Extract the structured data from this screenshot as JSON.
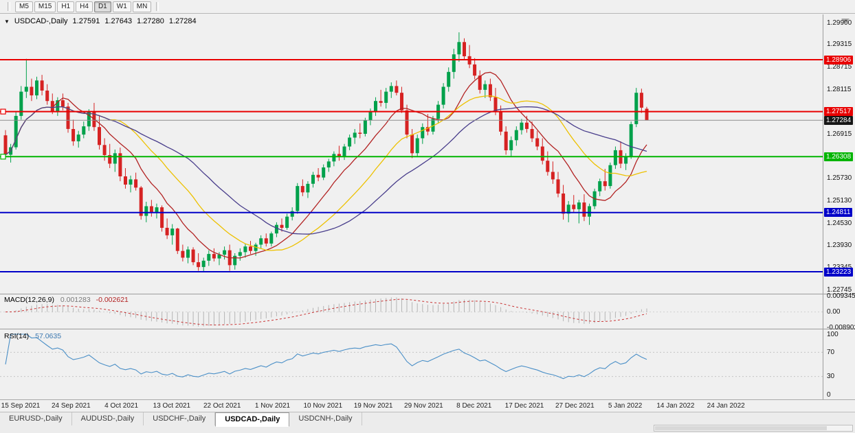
{
  "toolbar": {
    "timeframes": [
      "M5",
      "M15",
      "H1",
      "H4",
      "D1",
      "W1",
      "MN"
    ],
    "active_timeframe": "D1"
  },
  "chart_header": {
    "symbol": "USDCAD-,Daily",
    "open": "1.27591",
    "high": "1.27643",
    "low": "1.27280",
    "close": "1.27284"
  },
  "indicators": {
    "macd": {
      "name": "MACD(12,26,9)",
      "value_main": "0.001283",
      "value_signal": "-0.002621",
      "scale": [
        "0.009345",
        "0.00",
        "-0.008902"
      ],
      "colors": {
        "histogram": "#b4b4b4",
        "signal": "#c83232"
      }
    },
    "rsi": {
      "name": "RSI(14)",
      "value": "57.0635",
      "scale": [
        "100",
        "70",
        "30",
        "0"
      ],
      "levels": [
        70,
        30
      ],
      "color": "#4a8fc7"
    }
  },
  "tabs": {
    "items": [
      "EURUSD-,Daily",
      "AUDUSD-,Daily",
      "USDCHF-,Daily",
      "USDCAD-,Daily",
      "USDCNH-,Daily"
    ],
    "active": "USDCAD-,Daily"
  },
  "chart_data": {
    "type": "candlestick",
    "symbol": "USDCAD",
    "timeframe": "Daily",
    "y_axis": {
      "range": [
        1.2263,
        1.3012
      ],
      "ticks": [
        "1.29900",
        "1.29315",
        "1.28715",
        "1.28115",
        "1.26915",
        "1.25730",
        "1.25130",
        "1.24530",
        "1.23930",
        "1.23345",
        "1.22745"
      ]
    },
    "x_axis": {
      "labels": [
        "15 Sep 2021",
        "24 Sep 2021",
        "4 Oct 2021",
        "13 Oct 2021",
        "22 Oct 2021",
        "1 Nov 2021",
        "10 Nov 2021",
        "19 Nov 2021",
        "29 Nov 2021",
        "8 Dec 2021",
        "17 Dec 2021",
        "27 Dec 2021",
        "5 Jan 2022",
        "14 Jan 2022",
        "24 Jan 2022"
      ]
    },
    "horizontal_lines": [
      {
        "label": "1.28906",
        "value": 1.28906,
        "color": "#e80000",
        "anchor": false
      },
      {
        "label": "1.27517",
        "value": 1.27517,
        "color": "#e80000",
        "anchor": true
      },
      {
        "label": "1.26308",
        "value": 1.26308,
        "color": "#00b400",
        "anchor": true
      },
      {
        "label": "1.24811",
        "value": 1.24811,
        "color": "#0000c8",
        "anchor": false
      },
      {
        "label": "1.23223",
        "value": 1.23223,
        "color": "#0000c8",
        "anchor": false
      }
    ],
    "current_price": {
      "label": "1.27284",
      "value": 1.27284,
      "color": "#161616",
      "line_color": "#8c8c8c"
    },
    "candle_colors": {
      "up": "#00a14b",
      "down": "#d62222"
    },
    "moving_averages": [
      {
        "period": 10,
        "color": "#b22222"
      },
      {
        "period": 21,
        "color": "#edc100"
      },
      {
        "period": 34,
        "color": "#483d8b"
      }
    ],
    "macd_params": [
      12,
      26,
      9
    ],
    "rsi_period": 14,
    "candles": [
      [
        1.2688,
        1.2702,
        1.2628,
        1.2636
      ],
      [
        1.2636,
        1.2665,
        1.2615,
        1.2656
      ],
      [
        1.2656,
        1.275,
        1.265,
        1.274
      ],
      [
        1.274,
        1.282,
        1.273,
        1.2805
      ],
      [
        1.2805,
        1.2893,
        1.2788,
        1.2818
      ],
      [
        1.2818,
        1.284,
        1.278,
        1.2795
      ],
      [
        1.2795,
        1.2845,
        1.2785,
        1.2835
      ],
      [
        1.2835,
        1.285,
        1.2795,
        1.2808
      ],
      [
        1.2808,
        1.2825,
        1.277,
        1.278
      ],
      [
        1.278,
        1.28,
        1.2745,
        1.2752
      ],
      [
        1.2752,
        1.279,
        1.274,
        1.2782
      ],
      [
        1.2782,
        1.28,
        1.2755,
        1.2765
      ],
      [
        1.2765,
        1.2775,
        1.2695,
        1.2705
      ],
      [
        1.2705,
        1.273,
        1.266,
        1.2672
      ],
      [
        1.2672,
        1.27,
        1.2655,
        1.269
      ],
      [
        1.269,
        1.2725,
        1.268,
        1.2712
      ],
      [
        1.2712,
        1.2758,
        1.27,
        1.275
      ],
      [
        1.275,
        1.2775,
        1.27,
        1.271
      ],
      [
        1.271,
        1.2742,
        1.265,
        1.2662
      ],
      [
        1.2662,
        1.268,
        1.262,
        1.2635
      ],
      [
        1.2635,
        1.2665,
        1.26,
        1.2612
      ],
      [
        1.2612,
        1.265,
        1.259,
        1.264
      ],
      [
        1.264,
        1.2655,
        1.2565,
        1.2578
      ],
      [
        1.2578,
        1.26,
        1.2545,
        1.2556
      ],
      [
        1.2556,
        1.258,
        1.2535,
        1.257
      ],
      [
        1.257,
        1.2588,
        1.254,
        1.2548
      ],
      [
        1.2548,
        1.2552,
        1.2462,
        1.2472
      ],
      [
        1.2472,
        1.251,
        1.2455,
        1.2498
      ],
      [
        1.2498,
        1.2515,
        1.247,
        1.248
      ],
      [
        1.248,
        1.2505,
        1.2465,
        1.2495
      ],
      [
        1.2495,
        1.25,
        1.243,
        1.244
      ],
      [
        1.244,
        1.2465,
        1.241,
        1.242
      ],
      [
        1.242,
        1.245,
        1.2395,
        1.2438
      ],
      [
        1.2438,
        1.244,
        1.237,
        1.2378
      ],
      [
        1.2378,
        1.2395,
        1.235,
        1.236
      ],
      [
        1.236,
        1.239,
        1.2345,
        1.2382
      ],
      [
        1.2382,
        1.2388,
        1.234,
        1.2348
      ],
      [
        1.2348,
        1.2372,
        1.2325,
        1.2335
      ],
      [
        1.2335,
        1.236,
        1.2323,
        1.2352
      ],
      [
        1.2352,
        1.238,
        1.2338,
        1.237
      ],
      [
        1.237,
        1.2385,
        1.235,
        1.2358
      ],
      [
        1.2358,
        1.2375,
        1.234,
        1.2368
      ],
      [
        1.2368,
        1.239,
        1.2355,
        1.238
      ],
      [
        1.238,
        1.2395,
        1.2325,
        1.234
      ],
      [
        1.234,
        1.2372,
        1.2328,
        1.2365
      ],
      [
        1.2365,
        1.2385,
        1.2352,
        1.2375
      ],
      [
        1.2375,
        1.2398,
        1.236,
        1.239
      ],
      [
        1.239,
        1.2405,
        1.237,
        1.2378
      ],
      [
        1.2378,
        1.24,
        1.2365,
        1.2395
      ],
      [
        1.2395,
        1.242,
        1.2385,
        1.2412
      ],
      [
        1.2412,
        1.2425,
        1.239,
        1.2398
      ],
      [
        1.2398,
        1.243,
        1.239,
        1.2425
      ],
      [
        1.2425,
        1.2455,
        1.2415,
        1.2448
      ],
      [
        1.2448,
        1.2465,
        1.243,
        1.244
      ],
      [
        1.244,
        1.2478,
        1.2435,
        1.247
      ],
      [
        1.247,
        1.2495,
        1.246,
        1.2485
      ],
      [
        1.2485,
        1.256,
        1.2478,
        1.2552
      ],
      [
        1.2552,
        1.257,
        1.2525,
        1.2535
      ],
      [
        1.2535,
        1.2565,
        1.252,
        1.2558
      ],
      [
        1.2558,
        1.259,
        1.2548,
        1.2582
      ],
      [
        1.2582,
        1.26,
        1.2565,
        1.2575
      ],
      [
        1.2575,
        1.261,
        1.2568,
        1.2602
      ],
      [
        1.2602,
        1.2625,
        1.259,
        1.2618
      ],
      [
        1.2618,
        1.2645,
        1.2605,
        1.2638
      ],
      [
        1.2638,
        1.266,
        1.262,
        1.263
      ],
      [
        1.263,
        1.2665,
        1.2622,
        1.2658
      ],
      [
        1.2658,
        1.269,
        1.2648,
        1.2682
      ],
      [
        1.2682,
        1.2705,
        1.2665,
        1.2695
      ],
      [
        1.2695,
        1.272,
        1.268,
        1.2692
      ],
      [
        1.2692,
        1.2735,
        1.2685,
        1.2728
      ],
      [
        1.2728,
        1.276,
        1.2715,
        1.2752
      ],
      [
        1.2752,
        1.279,
        1.274,
        1.278
      ],
      [
        1.278,
        1.281,
        1.2765,
        1.2775
      ],
      [
        1.2775,
        1.2815,
        1.276,
        1.2805
      ],
      [
        1.2805,
        1.283,
        1.2788,
        1.282
      ],
      [
        1.282,
        1.2835,
        1.2795,
        1.2802
      ],
      [
        1.2802,
        1.2818,
        1.2748,
        1.2755
      ],
      [
        1.2755,
        1.277,
        1.268,
        1.269
      ],
      [
        1.269,
        1.2705,
        1.2627,
        1.264
      ],
      [
        1.264,
        1.269,
        1.263,
        1.268
      ],
      [
        1.268,
        1.272,
        1.2665,
        1.271
      ],
      [
        1.271,
        1.2745,
        1.2688,
        1.2698
      ],
      [
        1.2698,
        1.274,
        1.269,
        1.2732
      ],
      [
        1.2732,
        1.278,
        1.2722,
        1.277
      ],
      [
        1.277,
        1.2828,
        1.276,
        1.2818
      ],
      [
        1.2818,
        1.287,
        1.2805,
        1.2858
      ],
      [
        1.2858,
        1.292,
        1.284,
        1.2905
      ],
      [
        1.2905,
        1.2964,
        1.2885,
        1.2938
      ],
      [
        1.2938,
        1.2948,
        1.289,
        1.29
      ],
      [
        1.29,
        1.293,
        1.2868,
        1.2878
      ],
      [
        1.2878,
        1.2895,
        1.2838,
        1.2848
      ],
      [
        1.2848,
        1.2862,
        1.28,
        1.281
      ],
      [
        1.281,
        1.2835,
        1.2788,
        1.2825
      ],
      [
        1.2825,
        1.284,
        1.278,
        1.279
      ],
      [
        1.279,
        1.2815,
        1.2742,
        1.2752
      ],
      [
        1.2752,
        1.2768,
        1.2688,
        1.2698
      ],
      [
        1.2698,
        1.2712,
        1.2636,
        1.2648
      ],
      [
        1.2648,
        1.2685,
        1.2632,
        1.2675
      ],
      [
        1.2675,
        1.2712,
        1.266,
        1.2702
      ],
      [
        1.2702,
        1.2732,
        1.269,
        1.2722
      ],
      [
        1.2722,
        1.274,
        1.2695,
        1.2705
      ],
      [
        1.2705,
        1.2725,
        1.267,
        1.268
      ],
      [
        1.268,
        1.27,
        1.2648,
        1.2658
      ],
      [
        1.2658,
        1.268,
        1.261,
        1.262
      ],
      [
        1.262,
        1.2645,
        1.258,
        1.259
      ],
      [
        1.259,
        1.2618,
        1.2558,
        1.257
      ],
      [
        1.257,
        1.259,
        1.2522,
        1.2532
      ],
      [
        1.2532,
        1.2555,
        1.2462,
        1.2478
      ],
      [
        1.2478,
        1.2512,
        1.2455,
        1.2502
      ],
      [
        1.2502,
        1.2528,
        1.248,
        1.249
      ],
      [
        1.249,
        1.2515,
        1.2452,
        1.2508
      ],
      [
        1.2508,
        1.253,
        1.2458,
        1.247
      ],
      [
        1.247,
        1.2505,
        1.2448,
        1.2498
      ],
      [
        1.2498,
        1.2545,
        1.249,
        1.2538
      ],
      [
        1.2538,
        1.2572,
        1.2525,
        1.2565
      ],
      [
        1.2565,
        1.2598,
        1.254,
        1.2552
      ],
      [
        1.2552,
        1.2615,
        1.2545,
        1.2608
      ],
      [
        1.2608,
        1.2658,
        1.2598,
        1.2648
      ],
      [
        1.2648,
        1.2672,
        1.26,
        1.2612
      ],
      [
        1.2612,
        1.264,
        1.2595,
        1.2632
      ],
      [
        1.2632,
        1.2725,
        1.2625,
        1.2718
      ],
      [
        1.2718,
        1.2815,
        1.271,
        1.2802
      ],
      [
        1.2802,
        1.2813,
        1.2748,
        1.2762
      ],
      [
        1.27591,
        1.27643,
        1.2728,
        1.27284
      ]
    ]
  }
}
